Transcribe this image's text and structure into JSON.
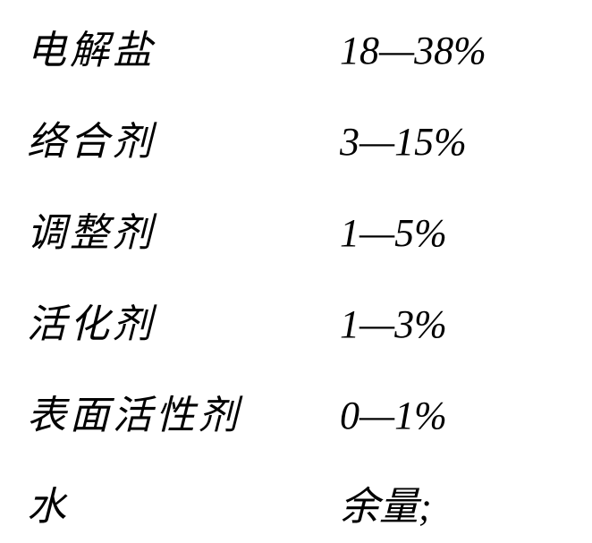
{
  "composition": {
    "rows": [
      {
        "name": "电解盐",
        "value": "18—38%"
      },
      {
        "name": "络合剂",
        "value": "3—15%"
      },
      {
        "name": "调整剂",
        "value": "1—5%"
      },
      {
        "name": "活化剂",
        "value": "1—3%"
      },
      {
        "name": "表面活性剂",
        "value": "0—1%"
      },
      {
        "name": "水",
        "value": "余量;"
      }
    ],
    "text_color": "#000000",
    "background_color": "#ffffff",
    "font_size": 42,
    "font_family": "KaiTi",
    "name_column_width": 350,
    "row_gap": 42
  }
}
